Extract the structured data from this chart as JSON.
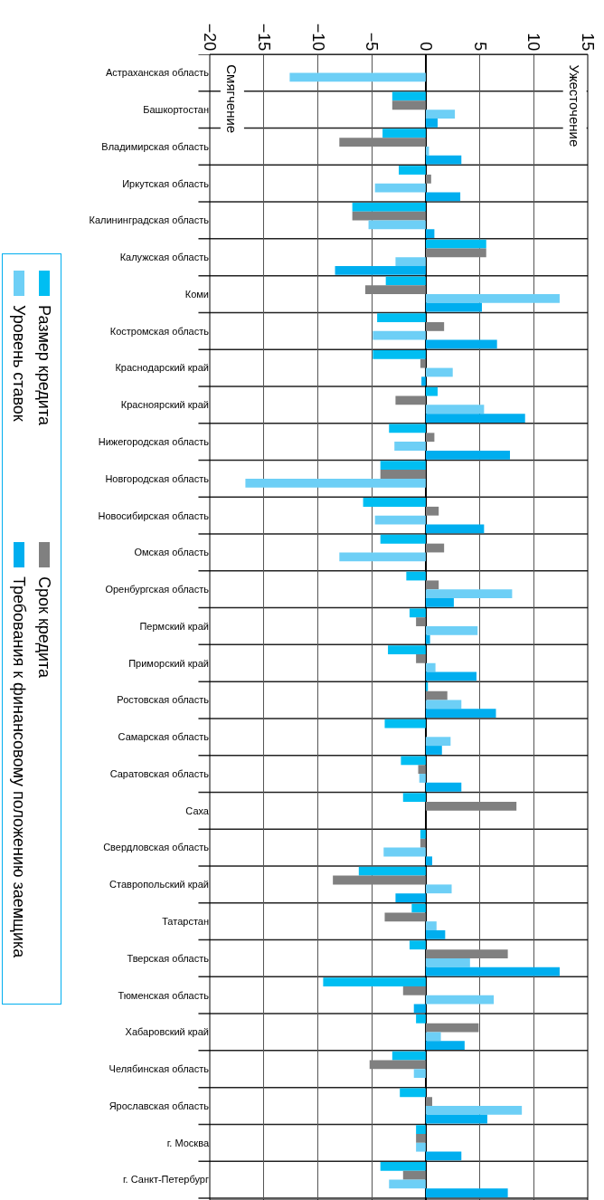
{
  "chart_data": {
    "type": "bar",
    "orientation": "horizontal",
    "categories": [
      "Астраханская область",
      "Башкортостан",
      "Владимирская область",
      "Иркутская область",
      "Калининградская область",
      "Калужская область",
      "Коми",
      "Костромская область",
      "Краснодарский край",
      "Красноярский край",
      "Нижегородская область",
      "Новгородская область",
      "Новосибирская область",
      "Омская область",
      "Оренбургская область",
      "Пермский край",
      "Приморский край",
      "Ростовская область",
      "Самарская область",
      "Саратовская область",
      "Саха",
      "Свердловская область",
      "Ставропольский край",
      "Татарстан",
      "Тверская область",
      "Тюменская область",
      "Хабаровский край",
      "Челябинская область",
      "Ярославская область",
      "г. Москва",
      "г. Санкт-Петербург"
    ],
    "series": [
      {
        "name": "Размер кредита",
        "color": "#00bef2",
        "values": [
          null,
          -3.1,
          -4,
          -2.5,
          -6.8,
          5.6,
          -3.7,
          -4.5,
          -4.9,
          1.1,
          -3.4,
          -4.2,
          -5.8,
          -4.2,
          -1.8,
          -1.5,
          -3.5,
          0.2,
          -3.8,
          -2.3,
          -2.1,
          -0.5,
          -6.2,
          -1.3,
          -1.5,
          -9.5,
          -0.9,
          -3.1,
          -2.4,
          -0.9,
          -4.2
        ]
      },
      {
        "name": "Срок кредита",
        "color": "#808080",
        "values": [
          null,
          -3.1,
          -8,
          0.5,
          -6.8,
          5.6,
          -5.6,
          1.7,
          -0.5,
          -2.8,
          0.8,
          -4.2,
          1.2,
          1.7,
          1.2,
          -0.9,
          -0.9,
          2,
          null,
          -0.7,
          8.4,
          -0.5,
          -8.6,
          -3.8,
          7.6,
          -2.1,
          4.9,
          -5.2,
          0.6,
          -0.9,
          -2.1
        ]
      },
      {
        "name": "Уровень ставок",
        "color": "#6dcff6",
        "values": [
          -12.6,
          2.7,
          0.3,
          -4.7,
          -5.3,
          -2.8,
          12.4,
          -4.9,
          2.5,
          5.4,
          -2.9,
          -16.7,
          -4.7,
          -8,
          8,
          4.8,
          0.9,
          3.3,
          2.3,
          -0.6,
          null,
          -3.9,
          2.4,
          1,
          4.1,
          6.3,
          1.4,
          -1.1,
          8.9,
          -0.9,
          -3.4
        ]
      },
      {
        "name": "Требования к финансовому положению заемщика",
        "color": "#00aeef",
        "values": [
          null,
          1.1,
          3.3,
          3.2,
          0.8,
          -8.4,
          5.2,
          6.6,
          -0.4,
          9.2,
          7.8,
          null,
          5.4,
          null,
          2.6,
          0.4,
          4.7,
          6.5,
          1.5,
          3.3,
          null,
          0.6,
          -2.8,
          1.8,
          12.4,
          -1.1,
          3.6,
          null,
          5.7,
          3.3,
          7.6
        ]
      }
    ],
    "xlim": [
      -20,
      15
    ],
    "xticks": [
      -20,
      -15,
      -10,
      -5,
      0,
      5,
      10,
      15
    ],
    "annotations": [
      "Смягчение",
      "Ужесточение"
    ],
    "grid": true,
    "legend": "left"
  }
}
